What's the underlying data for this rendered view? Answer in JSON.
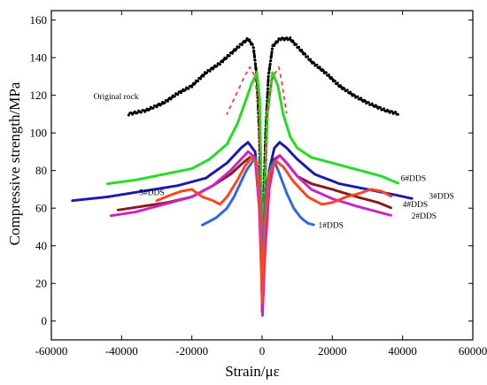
{
  "chart_data": {
    "type": "scatter",
    "xlabel": "Strain/με",
    "ylabel": "Compressive strength/MPa",
    "xlim": [
      -60000,
      60000
    ],
    "ylim": [
      -10,
      165
    ],
    "x_ticks": [
      "-60000",
      "-40000",
      "-20000",
      "0",
      "20000",
      "40000",
      "60000"
    ],
    "y_ticks": [
      "0",
      "20",
      "40",
      "60",
      "80",
      "100",
      "120",
      "140",
      "160"
    ],
    "x_tick_values": [
      -60000,
      -40000,
      -20000,
      0,
      20000,
      40000,
      60000
    ],
    "y_tick_values": [
      0,
      20,
      40,
      60,
      80,
      100,
      120,
      140,
      160
    ],
    "series": [
      {
        "name": "Original rock",
        "color": "#000000",
        "points": [
          [
            -38000,
            110
          ],
          [
            -33000,
            112
          ],
          [
            -28000,
            116
          ],
          [
            -24000,
            121
          ],
          [
            -20000,
            125
          ],
          [
            -16000,
            132
          ],
          [
            -12000,
            137
          ],
          [
            -9000,
            142
          ],
          [
            -6000,
            147
          ],
          [
            -4000,
            150
          ],
          [
            -2500,
            146
          ],
          [
            -1500,
            130
          ],
          [
            -800,
            100
          ],
          [
            -300,
            60
          ],
          [
            0,
            20
          ],
          [
            400,
            60
          ],
          [
            1000,
            100
          ],
          [
            1800,
            130
          ],
          [
            3000,
            146
          ],
          [
            5000,
            150
          ],
          [
            8000,
            150
          ],
          [
            11000,
            144
          ],
          [
            14000,
            138
          ],
          [
            18000,
            132
          ],
          [
            22000,
            125
          ],
          [
            26000,
            120
          ],
          [
            30000,
            116
          ],
          [
            35000,
            112
          ],
          [
            39000,
            110
          ]
        ],
        "jitter": 1.3
      },
      {
        "name": "6#DDS",
        "color": "#22dd22",
        "points": [
          [
            -44000,
            73
          ],
          [
            -36000,
            75
          ],
          [
            -28000,
            78
          ],
          [
            -20000,
            81
          ],
          [
            -15000,
            86
          ],
          [
            -10000,
            94
          ],
          [
            -7000,
            105
          ],
          [
            -4500,
            118
          ],
          [
            -3000,
            126
          ],
          [
            -1500,
            132
          ],
          [
            -700,
            118
          ],
          [
            -200,
            70
          ],
          [
            100,
            12
          ],
          [
            600,
            60
          ],
          [
            1500,
            110
          ],
          [
            3000,
            132
          ],
          [
            4500,
            125
          ],
          [
            6000,
            110
          ],
          [
            8000,
            98
          ],
          [
            10000,
            92
          ],
          [
            14000,
            87
          ],
          [
            20000,
            84
          ],
          [
            28000,
            80
          ],
          [
            34000,
            77
          ],
          [
            39000,
            73
          ]
        ]
      },
      {
        "name": "Red",
        "color": "#ff2222",
        "dashed": true,
        "points": [
          [
            -10000,
            110
          ],
          [
            -7000,
            122
          ],
          [
            -5000,
            130
          ],
          [
            -3500,
            135
          ],
          [
            -2000,
            130
          ],
          [
            -1000,
            110
          ],
          [
            -300,
            60
          ],
          [
            50,
            10
          ],
          [
            600,
            60
          ],
          [
            1500,
            110
          ],
          [
            2800,
            128
          ],
          [
            3800,
            132
          ],
          [
            4800,
            135
          ],
          [
            5800,
            125
          ],
          [
            7000,
            110
          ]
        ]
      },
      {
        "name": "3#DDS",
        "color": "#1a1aaa",
        "points": [
          [
            -54000,
            64
          ],
          [
            -44000,
            66
          ],
          [
            -34000,
            69
          ],
          [
            -24000,
            72
          ],
          [
            -16000,
            76
          ],
          [
            -10000,
            84
          ],
          [
            -6000,
            92
          ],
          [
            -4000,
            95
          ],
          [
            -2000,
            90
          ],
          [
            -800,
            70
          ],
          [
            -200,
            40
          ],
          [
            100,
            5
          ],
          [
            800,
            45
          ],
          [
            2000,
            80
          ],
          [
            3500,
            92
          ],
          [
            5000,
            95
          ],
          [
            7000,
            92
          ],
          [
            10000,
            86
          ],
          [
            15000,
            78
          ],
          [
            22000,
            73
          ],
          [
            30000,
            70
          ],
          [
            38000,
            67
          ],
          [
            43000,
            65
          ]
        ]
      },
      {
        "name": "5#DDS",
        "color": "#8b1a1a",
        "points": [
          [
            -41000,
            59
          ],
          [
            -34000,
            61
          ],
          [
            -27000,
            63
          ],
          [
            -20000,
            66
          ],
          [
            -14000,
            72
          ],
          [
            -9000,
            78
          ],
          [
            -5500,
            84
          ],
          [
            -3500,
            87
          ],
          [
            -1800,
            86
          ],
          [
            -800,
            70
          ],
          [
            -200,
            40
          ],
          [
            50,
            5
          ],
          [
            800,
            45
          ],
          [
            2000,
            75
          ],
          [
            3500,
            86
          ],
          [
            5000,
            88
          ],
          [
            7000,
            84
          ],
          [
            10000,
            77
          ],
          [
            14000,
            73
          ],
          [
            20000,
            70
          ],
          [
            27000,
            66
          ],
          [
            33000,
            63
          ],
          [
            37000,
            60
          ]
        ]
      },
      {
        "name": "2#DDS",
        "color": "#cc22cc",
        "points": [
          [
            -43000,
            56
          ],
          [
            -36000,
            58
          ],
          [
            -28000,
            62
          ],
          [
            -20000,
            66
          ],
          [
            -14000,
            72
          ],
          [
            -9000,
            80
          ],
          [
            -6000,
            86
          ],
          [
            -4000,
            90
          ],
          [
            -2000,
            87
          ],
          [
            -800,
            60
          ],
          [
            -100,
            20
          ],
          [
            100,
            3
          ],
          [
            800,
            35
          ],
          [
            2000,
            70
          ],
          [
            3500,
            85
          ],
          [
            5000,
            88
          ],
          [
            7000,
            84
          ],
          [
            10000,
            77
          ],
          [
            14000,
            70
          ],
          [
            20000,
            65
          ],
          [
            27000,
            61
          ],
          [
            33000,
            58
          ],
          [
            37000,
            56
          ]
        ]
      },
      {
        "name": "1#DDS",
        "color": "#2a6ae0",
        "points": [
          [
            -17000,
            51
          ],
          [
            -13000,
            55
          ],
          [
            -10000,
            60
          ],
          [
            -8000,
            66
          ],
          [
            -6000,
            74
          ],
          [
            -4500,
            80
          ],
          [
            -3000,
            84
          ],
          [
            -2000,
            87
          ],
          [
            -1000,
            80
          ],
          [
            -400,
            60
          ],
          [
            0,
            10
          ],
          [
            500,
            55
          ],
          [
            1500,
            75
          ],
          [
            2500,
            82
          ],
          [
            3500,
            85
          ],
          [
            5000,
            78
          ],
          [
            7000,
            68
          ],
          [
            9000,
            60
          ],
          [
            11000,
            55
          ],
          [
            13000,
            52
          ],
          [
            15000,
            51
          ]
        ]
      },
      {
        "name": "4#DDS",
        "color": "#ff4422",
        "points": [
          [
            -30000,
            64
          ],
          [
            -26000,
            67
          ],
          [
            -23000,
            69
          ],
          [
            -20000,
            70
          ],
          [
            -17000,
            66
          ],
          [
            -14000,
            64
          ],
          [
            -12000,
            62
          ],
          [
            -10000,
            66
          ],
          [
            -7000,
            75
          ],
          [
            -5000,
            82
          ],
          [
            -3000,
            87
          ],
          [
            -1500,
            84
          ],
          [
            -500,
            60
          ],
          [
            0,
            10
          ],
          [
            700,
            50
          ],
          [
            2000,
            78
          ],
          [
            4000,
            85
          ],
          [
            6000,
            82
          ],
          [
            9000,
            74
          ],
          [
            13000,
            66
          ],
          [
            17000,
            62
          ],
          [
            20000,
            63
          ],
          [
            24000,
            66
          ],
          [
            28000,
            68
          ],
          [
            31000,
            70
          ],
          [
            34000,
            69
          ],
          [
            37000,
            66
          ]
        ]
      }
    ],
    "annotations": [
      {
        "text": "Original rock",
        "x": -48000,
        "y": 118
      },
      {
        "text": "6#DDS",
        "x": 39500,
        "y": 74.5
      },
      {
        "text": "3#DDS",
        "x": 47500,
        "y": 65
      },
      {
        "text": "5#DDS",
        "x": -35000,
        "y": 67
      },
      {
        "text": "4#DDS",
        "x": 40000,
        "y": 60.5
      },
      {
        "text": "2#DDS",
        "x": 42500,
        "y": 54.5
      },
      {
        "text": "1#DDS",
        "x": 16000,
        "y": 49.5
      }
    ],
    "grid": false,
    "legend": "none"
  }
}
